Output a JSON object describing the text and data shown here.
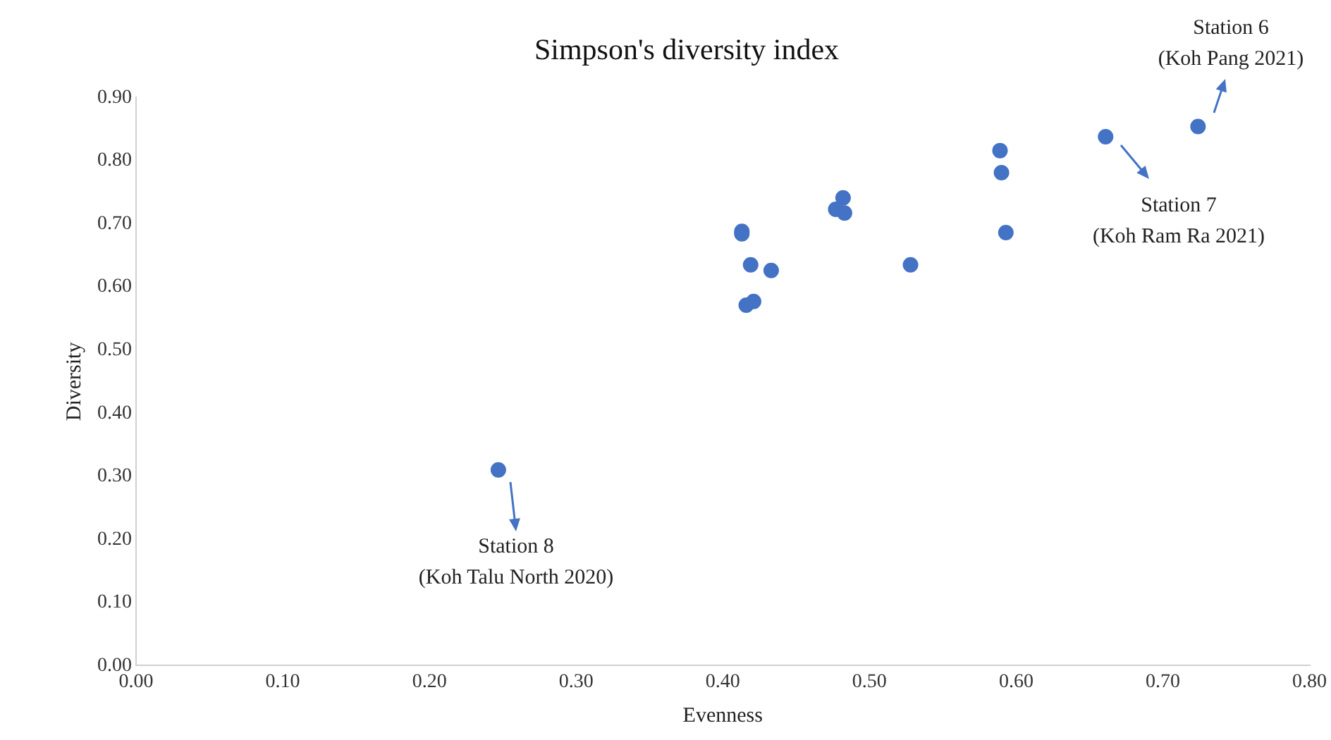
{
  "chart_data": {
    "type": "scatter",
    "title": "Simpson's diversity index",
    "xlabel": "Evenness",
    "ylabel": "Diversity",
    "series": [
      {
        "color": "#4472c4",
        "x": [
          0.247,
          0.413,
          0.413,
          0.419,
          0.433,
          0.416,
          0.421,
          0.482,
          0.477,
          0.483,
          0.528,
          0.589,
          0.59,
          0.593,
          0.661,
          0.724
        ],
        "values": [
          0.31,
          0.688,
          0.684,
          0.635,
          0.626,
          0.571,
          0.577,
          0.741,
          0.723,
          0.717,
          0.635,
          0.816,
          0.781,
          0.686,
          0.838,
          0.854
        ]
      }
    ],
    "xlim": [
      0,
      0.8
    ],
    "xticks": [
      {
        "value": 0,
        "label": "0.00"
      },
      {
        "value": 0.1,
        "label": "0.10"
      },
      {
        "value": 0.2,
        "label": "0.20"
      },
      {
        "value": 0.3,
        "label": "0.30"
      },
      {
        "value": 0.4,
        "label": "0.40"
      },
      {
        "value": 0.5,
        "label": "0.50"
      },
      {
        "value": 0.6,
        "label": "0.60"
      },
      {
        "value": 0.7,
        "label": "0.70"
      },
      {
        "value": 0.8,
        "label": "0.80"
      }
    ],
    "ylim": [
      0,
      0.9
    ],
    "yticks": [
      {
        "value": 0,
        "label": "0.00"
      },
      {
        "value": 0.1,
        "label": "0.10"
      },
      {
        "value": 0.2,
        "label": "0.20"
      },
      {
        "value": 0.3,
        "label": "0.30"
      },
      {
        "value": 0.4,
        "label": "0.40"
      },
      {
        "value": 0.5,
        "label": "0.50"
      },
      {
        "value": 0.6,
        "label": "0.60"
      },
      {
        "value": 0.7,
        "label": "0.70"
      },
      {
        "value": 0.8,
        "label": "0.80"
      },
      {
        "value": 0.9,
        "label": "0.90"
      }
    ],
    "grid": false,
    "legend": false,
    "marker": "circle",
    "annotations": [
      "Station 8\n(Koh Talu North 2020)",
      "Station 7\n(Koh Ram Ra 2021)",
      "Station 6\n(Koh Pang 2021)"
    ]
  }
}
